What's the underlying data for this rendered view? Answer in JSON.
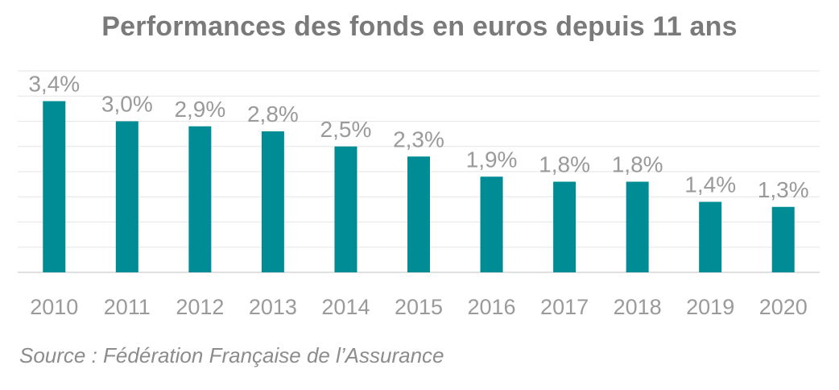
{
  "chart_data": {
    "type": "bar",
    "title": "Performances des fonds en euros depuis 11 ans",
    "categories": [
      "2010",
      "2011",
      "2012",
      "2013",
      "2014",
      "2015",
      "2016",
      "2017",
      "2018",
      "2019",
      "2020"
    ],
    "values": [
      3.4,
      3.0,
      2.9,
      2.8,
      2.5,
      2.3,
      1.9,
      1.8,
      1.8,
      1.4,
      1.3
    ],
    "value_labels": [
      "3,4%",
      "3,0%",
      "2,9%",
      "2,8%",
      "2,5%",
      "2,3%",
      "1,9%",
      "1,8%",
      "1,8%",
      "1,4%",
      "1,3%"
    ],
    "ylim": [
      0,
      4.0
    ],
    "grid": true,
    "legend": "none",
    "xlabel": "",
    "ylabel": "",
    "bar_color": "#008c95",
    "grid_color": "#e6e6e6",
    "label_color": "#9a9a9a"
  },
  "footer": {
    "source": "Source : Fédération Française de l’Assurance"
  }
}
